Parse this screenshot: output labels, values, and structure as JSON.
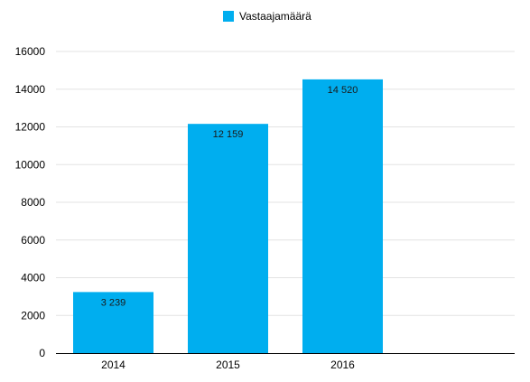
{
  "chart_data": {
    "type": "bar",
    "categories": [
      "2014",
      "2015",
      "2016"
    ],
    "series": [
      {
        "name": "Vastaajamäärä",
        "values": [
          3239,
          12159,
          14520
        ],
        "value_labels": [
          "3 239",
          "12 159",
          "14 520"
        ],
        "color": "#00aeef"
      }
    ],
    "title": "",
    "xlabel": "",
    "ylabel": "",
    "ylim": [
      0,
      16000
    ],
    "y_ticks": [
      0,
      2000,
      4000,
      6000,
      8000,
      10000,
      12000,
      14000,
      16000
    ],
    "grid": true,
    "legend_position": "top-center",
    "extra_empty_slot": true
  },
  "colors": {
    "bar": "#00aeef",
    "grid": "#e3e3e3",
    "axis": "#000000",
    "text": "#000000"
  }
}
